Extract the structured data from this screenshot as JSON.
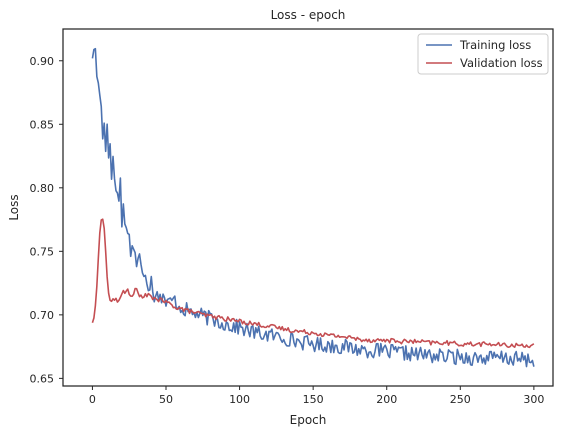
{
  "chart_data": {
    "type": "line",
    "title": "Loss - epoch",
    "xlabel": "Epoch",
    "ylabel": "Loss",
    "xlim": [
      -20,
      313
    ],
    "ylim": [
      0.644,
      0.925
    ],
    "xticks": [
      0,
      50,
      100,
      150,
      200,
      250,
      300
    ],
    "yticks": [
      0.65,
      0.7,
      0.75,
      0.8,
      0.85,
      0.9
    ],
    "xtick_labels": [
      "0",
      "50",
      "100",
      "150",
      "200",
      "250",
      "300"
    ],
    "ytick_labels": [
      "0.65",
      "0.70",
      "0.75",
      "0.80",
      "0.85",
      "0.90"
    ],
    "grid": false,
    "legend_position": "top-right",
    "series": [
      {
        "name": "Training loss",
        "color": "#4c72b0",
        "key": [
          [
            0,
            0.905
          ],
          [
            1,
            0.905
          ],
          [
            2,
            0.91
          ],
          [
            3,
            0.89
          ],
          [
            4,
            0.88
          ],
          [
            5,
            0.875
          ],
          [
            6,
            0.862
          ],
          [
            7,
            0.842
          ],
          [
            8,
            0.855
          ],
          [
            9,
            0.828
          ],
          [
            10,
            0.85
          ],
          [
            11,
            0.825
          ],
          [
            12,
            0.838
          ],
          [
            13,
            0.812
          ],
          [
            14,
            0.82
          ],
          [
            15,
            0.808
          ],
          [
            16,
            0.8
          ],
          [
            17,
            0.795
          ],
          [
            18,
            0.79
          ],
          [
            19,
            0.805
          ],
          [
            20,
            0.772
          ],
          [
            21,
            0.792
          ],
          [
            22,
            0.768
          ],
          [
            24,
            0.77
          ],
          [
            26,
            0.75
          ],
          [
            28,
            0.755
          ],
          [
            30,
            0.74
          ],
          [
            32,
            0.745
          ],
          [
            34,
            0.73
          ],
          [
            36,
            0.735
          ],
          [
            38,
            0.722
          ],
          [
            40,
            0.728
          ],
          [
            42,
            0.715
          ],
          [
            44,
            0.72
          ],
          [
            46,
            0.712
          ],
          [
            48,
            0.718
          ],
          [
            50,
            0.708
          ],
          [
            55,
            0.712
          ],
          [
            60,
            0.706
          ],
          [
            65,
            0.703
          ],
          [
            70,
            0.701
          ],
          [
            75,
            0.699
          ],
          [
            80,
            0.697
          ],
          [
            85,
            0.695
          ],
          [
            90,
            0.693
          ],
          [
            95,
            0.691
          ],
          [
            100,
            0.69
          ],
          [
            110,
            0.686
          ],
          [
            120,
            0.684
          ],
          [
            130,
            0.682
          ],
          [
            140,
            0.679
          ],
          [
            150,
            0.677
          ],
          [
            160,
            0.676
          ],
          [
            170,
            0.675
          ],
          [
            180,
            0.673
          ],
          [
            190,
            0.672
          ],
          [
            200,
            0.671
          ],
          [
            210,
            0.67
          ],
          [
            220,
            0.669
          ],
          [
            230,
            0.668
          ],
          [
            240,
            0.667
          ],
          [
            250,
            0.667
          ],
          [
            260,
            0.666
          ],
          [
            270,
            0.666
          ],
          [
            280,
            0.666
          ],
          [
            290,
            0.665
          ],
          [
            300,
            0.664
          ]
        ],
        "noise": 0.006,
        "n": 301
      },
      {
        "name": "Validation loss",
        "color": "#c44e52",
        "key": [
          [
            0,
            0.694
          ],
          [
            1,
            0.697
          ],
          [
            2,
            0.707
          ],
          [
            3,
            0.723
          ],
          [
            4,
            0.745
          ],
          [
            5,
            0.764
          ],
          [
            6,
            0.775
          ],
          [
            7,
            0.775
          ],
          [
            8,
            0.768
          ],
          [
            9,
            0.75
          ],
          [
            10,
            0.73
          ],
          [
            11,
            0.717
          ],
          [
            12,
            0.711
          ],
          [
            14,
            0.711
          ],
          [
            16,
            0.712
          ],
          [
            18,
            0.711
          ],
          [
            20,
            0.718
          ],
          [
            22,
            0.717
          ],
          [
            24,
            0.719
          ],
          [
            26,
            0.714
          ],
          [
            28,
            0.718
          ],
          [
            30,
            0.72
          ],
          [
            32,
            0.716
          ],
          [
            34,
            0.712
          ],
          [
            36,
            0.716
          ],
          [
            40,
            0.714
          ],
          [
            45,
            0.712
          ],
          [
            50,
            0.71
          ],
          [
            55,
            0.707
          ],
          [
            60,
            0.705
          ],
          [
            65,
            0.703
          ],
          [
            70,
            0.702
          ],
          [
            75,
            0.7
          ],
          [
            80,
            0.699
          ],
          [
            90,
            0.697
          ],
          [
            100,
            0.695
          ],
          [
            110,
            0.693
          ],
          [
            120,
            0.691
          ],
          [
            130,
            0.689
          ],
          [
            140,
            0.687
          ],
          [
            150,
            0.686
          ],
          [
            160,
            0.684
          ],
          [
            170,
            0.683
          ],
          [
            180,
            0.681
          ],
          [
            190,
            0.68
          ],
          [
            200,
            0.68
          ],
          [
            210,
            0.679
          ],
          [
            220,
            0.679
          ],
          [
            230,
            0.678
          ],
          [
            240,
            0.678
          ],
          [
            250,
            0.677
          ],
          [
            260,
            0.677
          ],
          [
            270,
            0.677
          ],
          [
            280,
            0.676
          ],
          [
            290,
            0.676
          ],
          [
            300,
            0.676
          ]
        ],
        "noise": 0.0018,
        "n": 301
      }
    ]
  }
}
